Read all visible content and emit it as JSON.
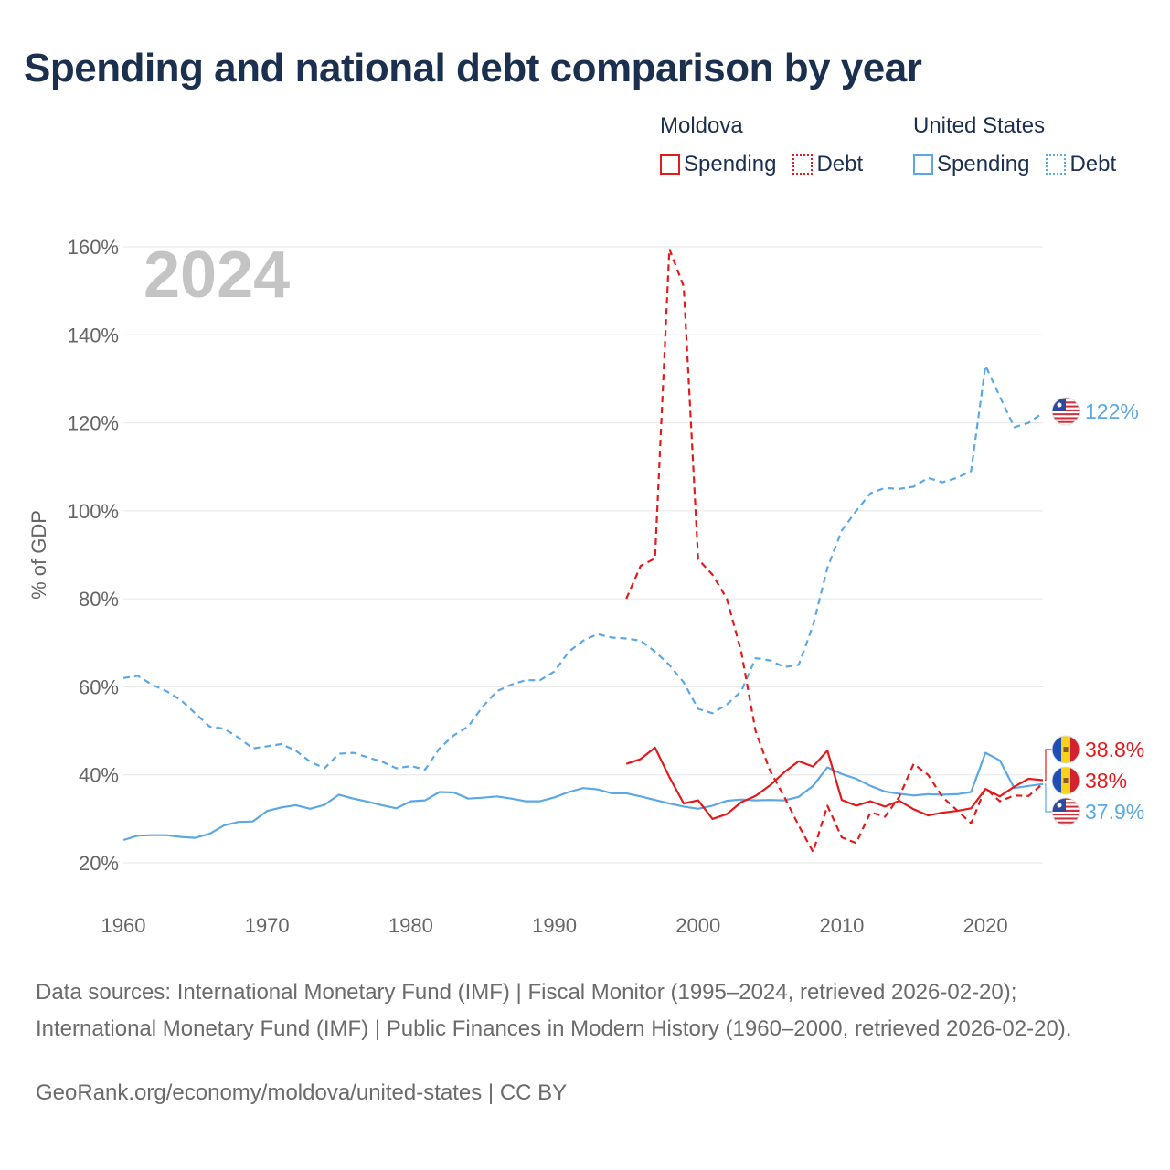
{
  "title": "Spending and national debt comparison by year",
  "legend": {
    "moldova": {
      "name": "Moldova",
      "spending": "Spending",
      "debt": "Debt"
    },
    "us": {
      "name": "United States",
      "spending": "Spending",
      "debt": "Debt"
    }
  },
  "colors": {
    "moldova": "#e41a1c",
    "us": "#5ca8e6",
    "grid": "#e6e6e6",
    "axis_text": "#666666",
    "year_watermark": "#c4c4c4"
  },
  "sources": "Data sources: International Monetary Fund (IMF) | Fiscal Monitor (1995–2024, retrieved 2026-02-20); International Monetary Fund (IMF) | Public Finances in Modern History (1960–2000, retrieved 2026-02-20).",
  "credit": "GeoRank.org/economy/moldova/united-states | CC BY",
  "chart_data": {
    "type": "line",
    "title": "Spending and national debt comparison by year",
    "year_label": "2024",
    "xlabel": "",
    "ylabel": "% of GDP",
    "xlim": [
      1960,
      2024
    ],
    "ylim": [
      18,
      162
    ],
    "x_ticks": [
      1960,
      1970,
      1980,
      1990,
      2000,
      2010,
      2020
    ],
    "y_ticks": [
      20,
      40,
      60,
      80,
      100,
      120,
      140,
      160
    ],
    "y_tick_labels": [
      "20%",
      "40%",
      "60%",
      "80%",
      "100%",
      "120%",
      "140%",
      "160%"
    ],
    "series": [
      {
        "name": "United States Debt",
        "country": "us",
        "style": "dashed",
        "end_label": "122%",
        "x": [
          1960,
          1961,
          1962,
          1963,
          1964,
          1965,
          1966,
          1967,
          1968,
          1969,
          1970,
          1971,
          1972,
          1973,
          1974,
          1975,
          1976,
          1977,
          1978,
          1979,
          1980,
          1981,
          1982,
          1983,
          1984,
          1985,
          1986,
          1987,
          1988,
          1989,
          1990,
          1991,
          1992,
          1993,
          1994,
          1995,
          1996,
          1997,
          1998,
          1999,
          2000,
          2001,
          2002,
          2003,
          2004,
          2005,
          2006,
          2007,
          2008,
          2009,
          2010,
          2011,
          2012,
          2013,
          2014,
          2015,
          2016,
          2017,
          2018,
          2019,
          2020,
          2021,
          2022,
          2023,
          2024
        ],
        "values": [
          62,
          62.5,
          60.5,
          59,
          57,
          54,
          51,
          50.5,
          48.5,
          46,
          46.5,
          47,
          45.5,
          43,
          41.5,
          44.8,
          45,
          44,
          43,
          41.5,
          42,
          41.2,
          46,
          49,
          51,
          55.5,
          59,
          60.5,
          61.5,
          61.5,
          63.5,
          68,
          70.5,
          72,
          71.2,
          71,
          70.5,
          68,
          65,
          61,
          55,
          54,
          56,
          59,
          66.5,
          66,
          64.5,
          65,
          74,
          87,
          95.5,
          100,
          104,
          105.2,
          105,
          105.5,
          107.5,
          106.5,
          107.5,
          109,
          133,
          126,
          119,
          120,
          122.3
        ]
      },
      {
        "name": "United States Spending",
        "country": "us",
        "style": "solid",
        "end_label": "37.9%",
        "x": [
          1960,
          1961,
          1962,
          1963,
          1964,
          1965,
          1966,
          1967,
          1968,
          1969,
          1970,
          1971,
          1972,
          1973,
          1974,
          1975,
          1976,
          1977,
          1978,
          1979,
          1980,
          1981,
          1982,
          1983,
          1984,
          1985,
          1986,
          1987,
          1988,
          1989,
          1990,
          1991,
          1992,
          1993,
          1994,
          1995,
          1996,
          1997,
          1998,
          1999,
          2000,
          2001,
          2002,
          2003,
          2004,
          2005,
          2006,
          2007,
          2008,
          2009,
          2010,
          2011,
          2012,
          2013,
          2014,
          2015,
          2016,
          2017,
          2018,
          2019,
          2020,
          2021,
          2022,
          2023,
          2024
        ],
        "values": [
          25.2,
          26.2,
          26.3,
          26.3,
          25.9,
          25.7,
          26.6,
          28.5,
          29.3,
          29.4,
          31.8,
          32.6,
          33.1,
          32.3,
          33.2,
          35.5,
          34.6,
          33.9,
          33.1,
          32.4,
          34,
          34.2,
          36.1,
          36,
          34.6,
          34.8,
          35.1,
          34.6,
          34,
          34,
          34.9,
          36.1,
          37,
          36.7,
          35.8,
          35.8,
          35.1,
          34.3,
          33.5,
          32.8,
          32.3,
          33,
          34.1,
          34.4,
          34.2,
          34.3,
          34.2,
          35,
          37.5,
          41.7,
          40.2,
          39.1,
          37.5,
          36.2,
          35.7,
          35.3,
          35.6,
          35.5,
          35.6,
          36.1,
          45,
          43.3,
          37,
          37.5,
          37.9
        ]
      },
      {
        "name": "Moldova Debt",
        "country": "moldova",
        "style": "dashed",
        "end_label": "38%",
        "x": [
          1995,
          1996,
          1997,
          1998,
          1999,
          2000,
          2001,
          2002,
          2003,
          2004,
          2005,
          2006,
          2007,
          2008,
          2009,
          2010,
          2011,
          2012,
          2013,
          2014,
          2015,
          2016,
          2017,
          2018,
          2019,
          2020,
          2021,
          2022,
          2023,
          2024
        ],
        "values": [
          80,
          87.5,
          89.2,
          159.5,
          151,
          89,
          85.5,
          80,
          68,
          50,
          41,
          35,
          28.5,
          22.5,
          33,
          25.8,
          24.5,
          31.5,
          30.5,
          35,
          42.5,
          40,
          35,
          32,
          29,
          37,
          34,
          35.3,
          35.2,
          38
        ]
      },
      {
        "name": "Moldova Spending",
        "country": "moldova",
        "style": "solid",
        "end_label": "38.8%",
        "x": [
          1995,
          1996,
          1997,
          1998,
          1999,
          2000,
          2001,
          2002,
          2003,
          2004,
          2005,
          2006,
          2007,
          2008,
          2009,
          2010,
          2011,
          2012,
          2013,
          2014,
          2015,
          2016,
          2017,
          2018,
          2019,
          2020,
          2021,
          2022,
          2023,
          2024
        ],
        "values": [
          42.5,
          43.6,
          46.2,
          39.5,
          33.5,
          34.2,
          30,
          31.1,
          33.8,
          35.2,
          37.6,
          40.6,
          43.1,
          41.9,
          45.5,
          34.3,
          33,
          34,
          32.8,
          34.1,
          32.2,
          30.8,
          31.4,
          31.8,
          32.4,
          36.8,
          35.1,
          37.3,
          39.1,
          38.8
        ]
      }
    ]
  }
}
